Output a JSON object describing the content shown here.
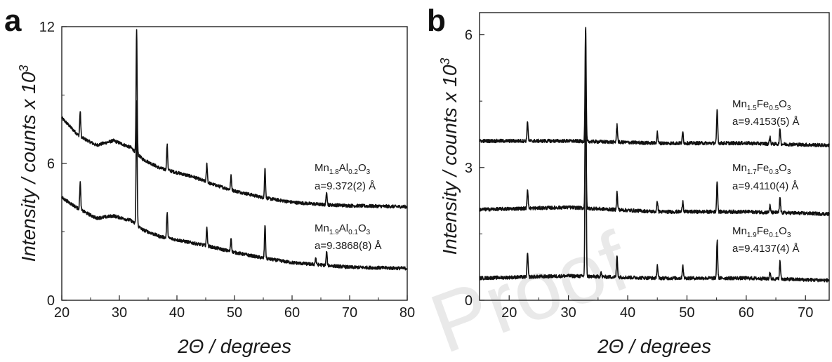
{
  "watermark": "Proof",
  "chart_data": [
    {
      "panel": "a",
      "type": "line",
      "xlabel": "2Θ / degrees",
      "ylabel": "Intensity / counts x 10",
      "ylabel_sup": "3",
      "xlim": [
        20,
        80
      ],
      "ylim": [
        0,
        12
      ],
      "xticks": [
        20,
        30,
        40,
        50,
        60,
        70,
        80
      ],
      "yticks": [
        0,
        6,
        12
      ],
      "series": [
        {
          "name": "Mn1.8Al0.2O3",
          "baseline": [
            [
              20,
              8.0
            ],
            [
              23,
              7.2
            ],
            [
              26,
              6.8
            ],
            [
              29,
              7.0
            ],
            [
              32,
              6.7
            ],
            [
              34,
              6.2
            ],
            [
              37,
              5.8
            ],
            [
              40,
              5.6
            ],
            [
              43,
              5.4
            ],
            [
              46,
              5.1
            ],
            [
              50,
              4.8
            ],
            [
              55,
              4.5
            ],
            [
              60,
              4.3
            ],
            [
              65,
              4.2
            ],
            [
              70,
              4.15
            ],
            [
              80,
              4.1
            ]
          ],
          "peaks": [
            [
              23.2,
              1.1
            ],
            [
              33.0,
              5.4
            ],
            [
              38.3,
              1.1
            ],
            [
              45.2,
              0.8
            ],
            [
              49.4,
              0.6
            ],
            [
              55.3,
              1.3
            ],
            [
              66.0,
              0.6
            ]
          ],
          "label_text": {
            "base": "Mn",
            "s1": "1.8",
            "el2": "Al",
            "s2": "0.2",
            "el3": "O",
            "s3": "3"
          },
          "annotation": "a=9.372(2) Å"
        },
        {
          "name": "Mn1.9Al0.1O3",
          "baseline": [
            [
              20,
              4.5
            ],
            [
              23,
              4.0
            ],
            [
              26,
              3.6
            ],
            [
              29,
              3.7
            ],
            [
              32,
              3.5
            ],
            [
              34,
              3.1
            ],
            [
              37,
              2.8
            ],
            [
              40,
              2.65
            ],
            [
              45,
              2.4
            ],
            [
              50,
              2.1
            ],
            [
              55,
              1.85
            ],
            [
              60,
              1.65
            ],
            [
              65,
              1.55
            ],
            [
              70,
              1.45
            ],
            [
              80,
              1.4
            ]
          ],
          "peaks": [
            [
              23.2,
              1.2
            ],
            [
              33.0,
              5.4
            ],
            [
              38.3,
              1.1
            ],
            [
              45.2,
              0.8
            ],
            [
              49.4,
              0.6
            ],
            [
              55.3,
              1.5
            ],
            [
              64.1,
              0.3
            ],
            [
              66.0,
              0.6
            ]
          ],
          "label_text": {
            "base": "Mn",
            "s1": "1.9",
            "el2": "Al",
            "s2": "0.1",
            "el3": "O",
            "s3": "3"
          },
          "annotation": "a=9.3868(8) Å"
        }
      ]
    },
    {
      "panel": "b",
      "type": "line",
      "xlabel": "2Θ / degrees",
      "ylabel": "Intensity / counts x 10",
      "ylabel_sup": "3",
      "xlim": [
        15,
        74
      ],
      "ylim": [
        0,
        6.5
      ],
      "xticks": [
        20,
        30,
        40,
        50,
        60,
        70
      ],
      "yticks": [
        0,
        3,
        6
      ],
      "series": [
        {
          "name": "Mn1.5Fe0.5O3",
          "baseline": [
            [
              15,
              3.6
            ],
            [
              30,
              3.6
            ],
            [
              45,
              3.55
            ],
            [
              60,
              3.55
            ],
            [
              74,
              3.5
            ]
          ],
          "peaks": [
            [
              23.1,
              0.45
            ],
            [
              32.9,
              2.6
            ],
            [
              38.2,
              0.4
            ],
            [
              45.0,
              0.25
            ],
            [
              49.3,
              0.25
            ],
            [
              55.1,
              0.75
            ],
            [
              64.0,
              0.15
            ],
            [
              65.7,
              0.35
            ]
          ],
          "label_text": {
            "base": "Mn",
            "s1": "1.5",
            "el2": "Fe",
            "s2": "0.5",
            "el3": "O",
            "s3": "3"
          },
          "annotation": "a=9.4153(5) Å"
        },
        {
          "name": "Mn1.7Fe0.3O3",
          "baseline": [
            [
              15,
              2.05
            ],
            [
              30,
              2.1
            ],
            [
              45,
              2.0
            ],
            [
              60,
              2.0
            ],
            [
              74,
              1.95
            ]
          ],
          "peaks": [
            [
              23.1,
              0.45
            ],
            [
              32.9,
              2.8
            ],
            [
              38.2,
              0.4
            ],
            [
              45.0,
              0.25
            ],
            [
              49.3,
              0.25
            ],
            [
              55.1,
              0.7
            ],
            [
              64.0,
              0.15
            ],
            [
              65.7,
              0.35
            ]
          ],
          "label_text": {
            "base": "Mn",
            "s1": "1.7",
            "el2": "Fe",
            "s2": "0.3",
            "el3": "O",
            "s3": "3"
          },
          "annotation": "a=9.4110(4) Å"
        },
        {
          "name": "Mn1.9Fe0.1O3",
          "baseline": [
            [
              15,
              0.5
            ],
            [
              30,
              0.55
            ],
            [
              45,
              0.5
            ],
            [
              60,
              0.5
            ],
            [
              74,
              0.45
            ]
          ],
          "peaks": [
            [
              23.1,
              0.55
            ],
            [
              32.9,
              5.65
            ],
            [
              35.5,
              0.1
            ],
            [
              38.2,
              0.5
            ],
            [
              45.0,
              0.3
            ],
            [
              49.3,
              0.3
            ],
            [
              55.1,
              0.85
            ],
            [
              64.0,
              0.15
            ],
            [
              65.7,
              0.4
            ]
          ],
          "label_text": {
            "base": "Mn",
            "s1": "1.9",
            "el2": "Fe",
            "s2": "0.1",
            "el3": "O",
            "s3": "3"
          },
          "annotation": "a=9.4137(4) Å"
        }
      ]
    }
  ]
}
